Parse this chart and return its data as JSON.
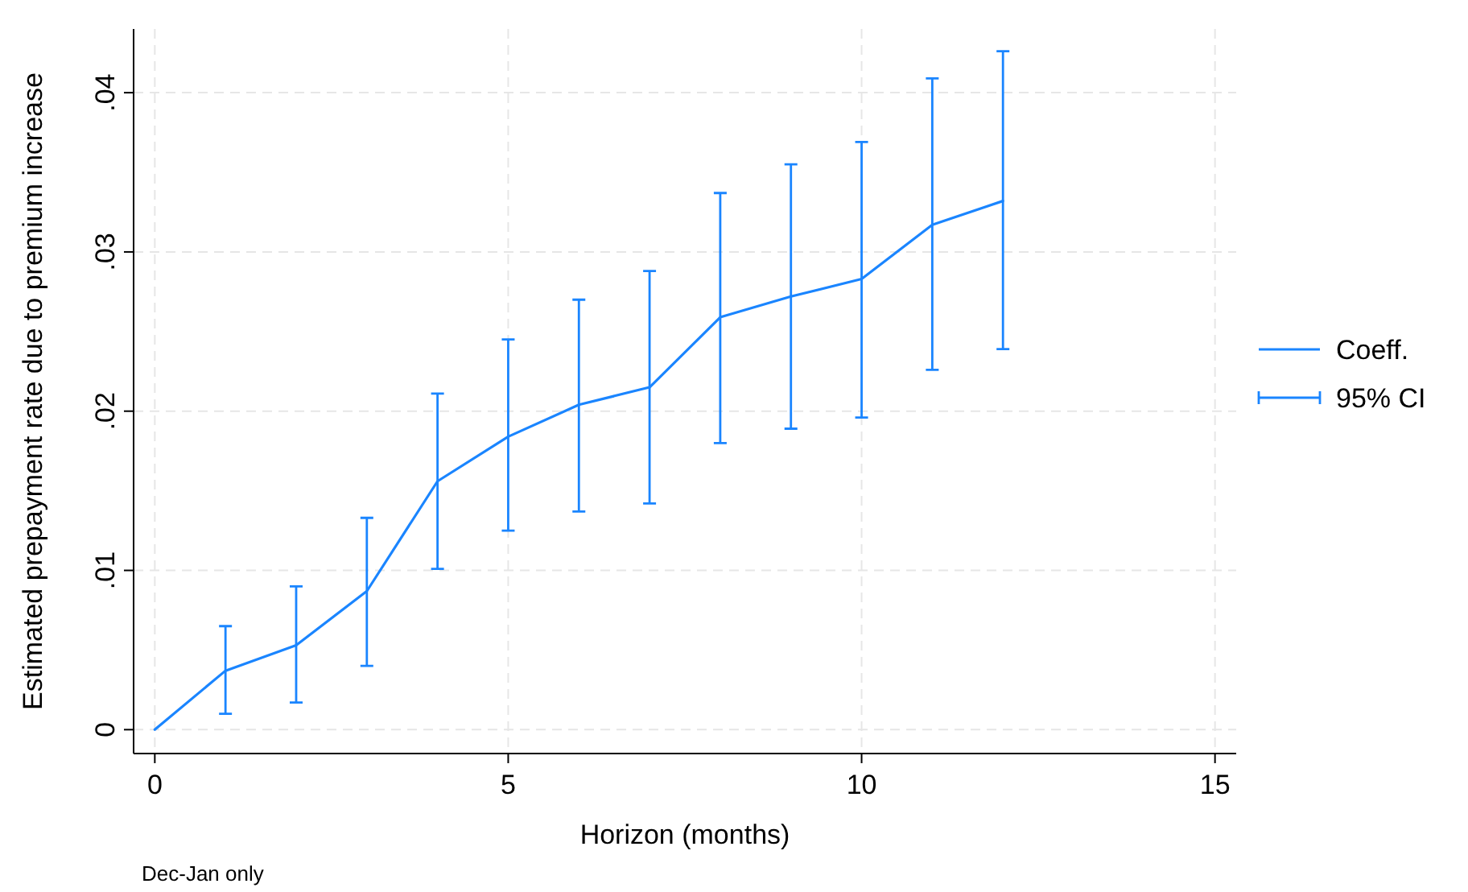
{
  "chart_data": {
    "type": "line",
    "xlabel": "Horizon (months)",
    "ylabel": "Estimated prepayment rate due to premium increase",
    "x": [
      0,
      1,
      2,
      3,
      4,
      5,
      6,
      7,
      8,
      9,
      10,
      11,
      12
    ],
    "xlim": [
      -0.3,
      15.3
    ],
    "xticks": [
      0,
      5,
      10,
      15
    ],
    "ylim": [
      -0.0015,
      0.044
    ],
    "yticks": [
      {
        "value": 0,
        "label": "0"
      },
      {
        "value": 0.01,
        "label": ".01"
      },
      {
        "value": 0.02,
        "label": ".02"
      },
      {
        "value": 0.03,
        "label": ".03"
      },
      {
        "value": 0.04,
        "label": ".04"
      }
    ],
    "grid": true,
    "legend": "right",
    "line_style": "solid",
    "series": [
      {
        "name": "Coeff.",
        "color": "#1a85ff",
        "values": [
          0,
          0.0037,
          0.0053,
          0.0087,
          0.0156,
          0.0184,
          0.0204,
          0.0215,
          0.0259,
          0.0272,
          0.0283,
          0.0317,
          0.0332
        ],
        "errors": [
          null,
          [
            0.001,
            0.0065
          ],
          [
            0.0017,
            0.009
          ],
          [
            0.004,
            0.0133
          ],
          [
            0.0101,
            0.0211
          ],
          [
            0.0125,
            0.0245
          ],
          [
            0.0137,
            0.027
          ],
          [
            0.0142,
            0.0288
          ],
          [
            0.018,
            0.0337
          ],
          [
            0.0189,
            0.0355
          ],
          [
            0.0196,
            0.0369
          ],
          [
            0.0226,
            0.0409
          ],
          [
            0.0239,
            0.0426
          ]
        ]
      }
    ],
    "annotations": [
      "Dec-Jan only",
      "95% CI"
    ]
  }
}
